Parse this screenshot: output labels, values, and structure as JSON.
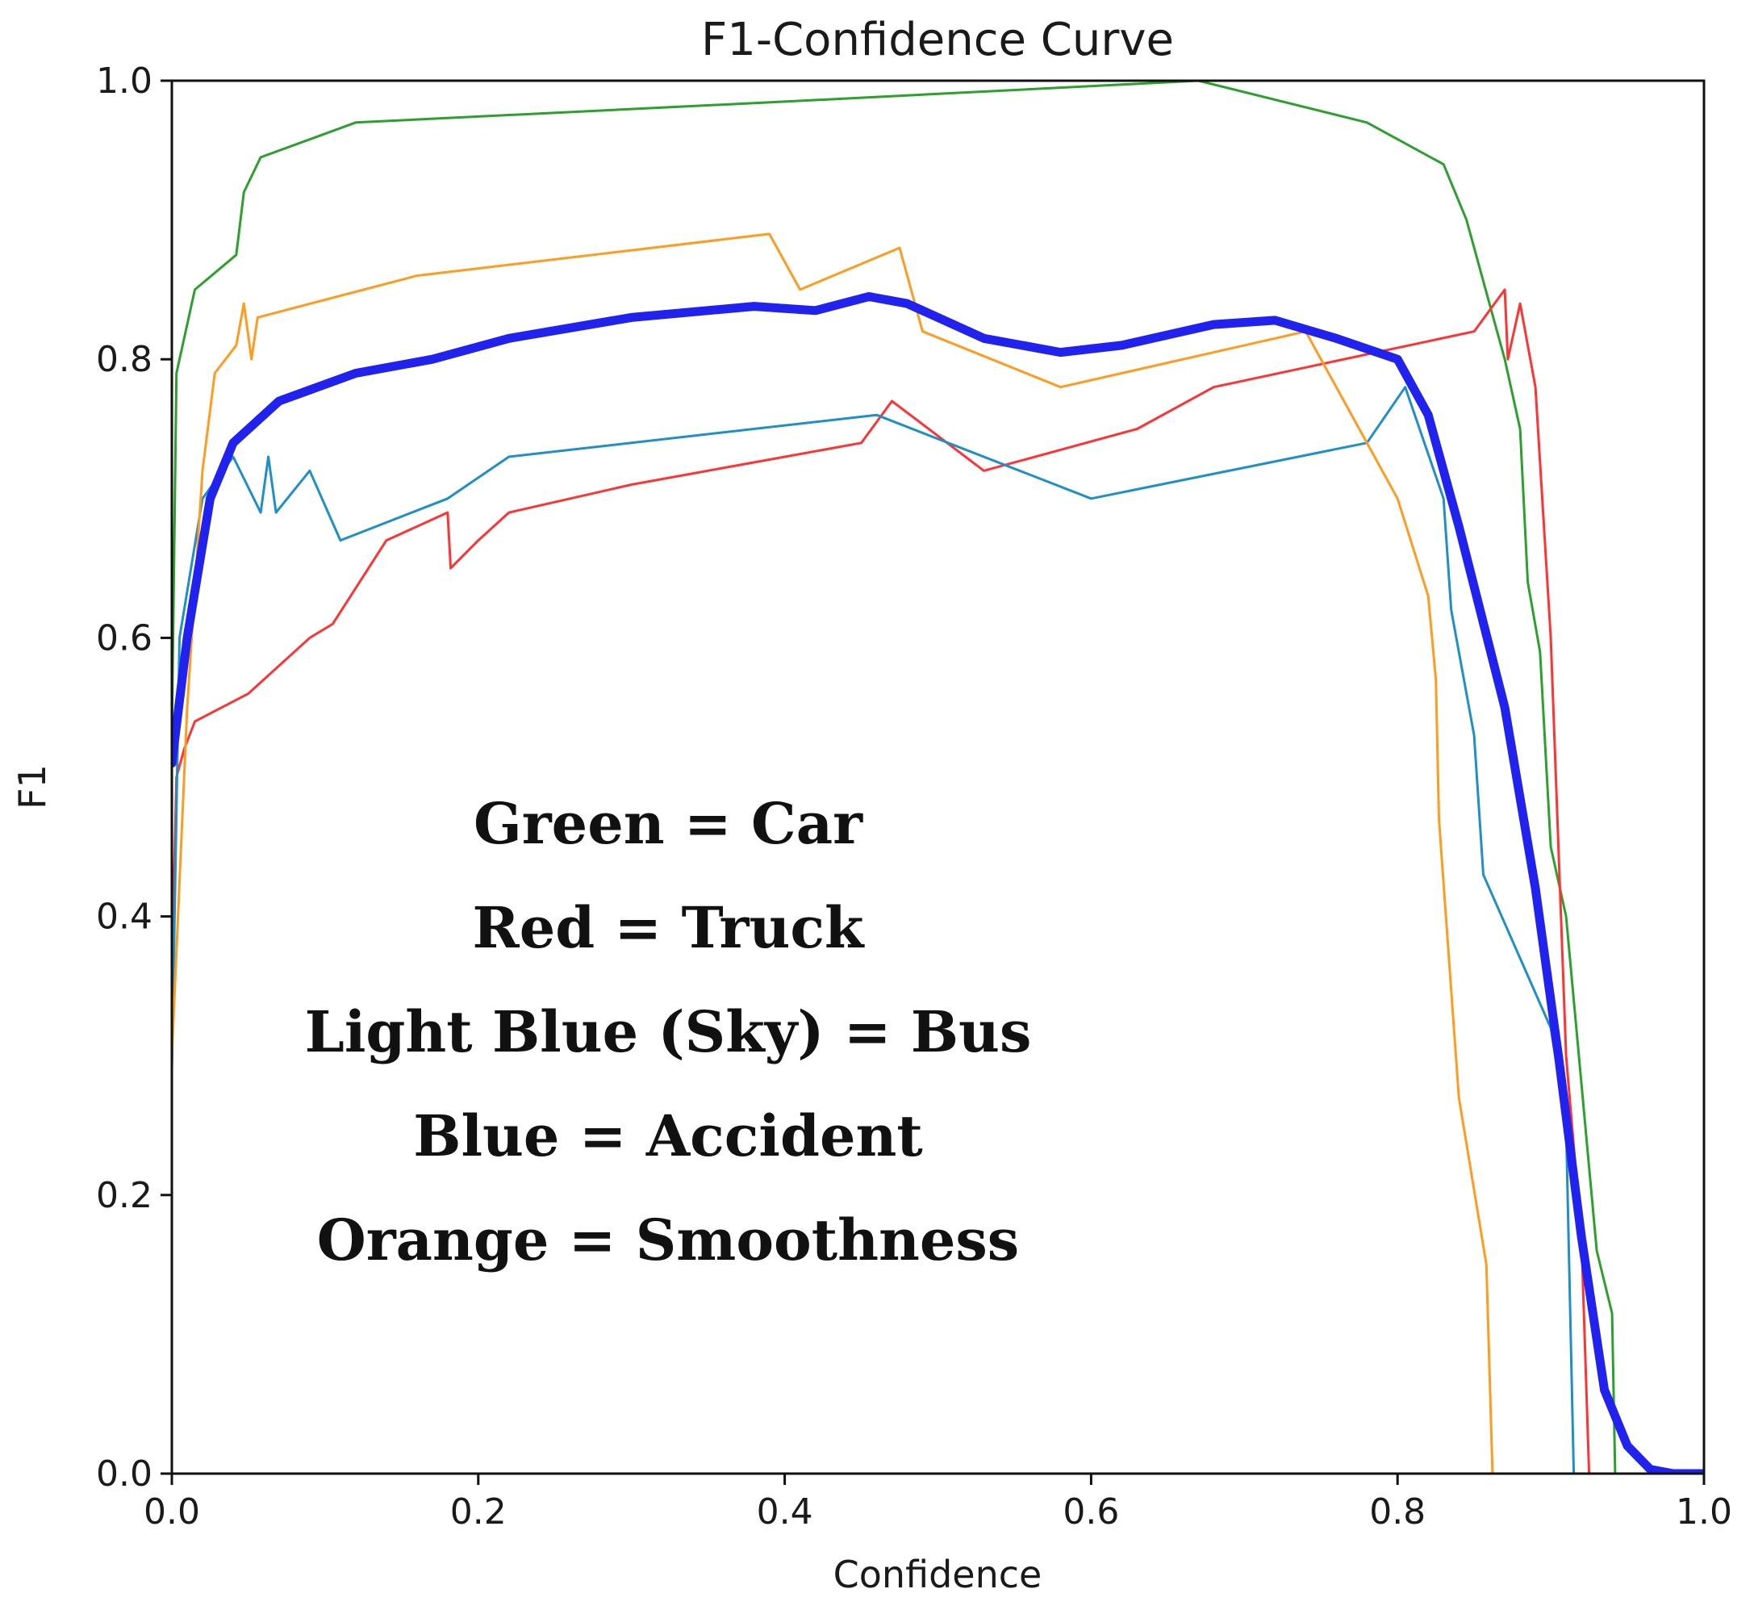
{
  "chart_data": {
    "type": "line",
    "title": "F1-Confidence Curve",
    "xlabel": "Confidence",
    "ylabel": "F1",
    "xlim": [
      0.0,
      1.0
    ],
    "ylim": [
      0.0,
      1.0
    ],
    "grid": false,
    "xticks": [
      "0.0",
      "0.2",
      "0.4",
      "0.6",
      "0.8",
      "1.0"
    ],
    "yticks": [
      "0.0",
      "0.2",
      "0.4",
      "0.6",
      "0.8",
      "1.0"
    ],
    "annotations": [
      "Green = Car",
      "Red = Truck",
      "Light Blue (Sky) = Bus",
      "Blue = Accident",
      "Orange = Smoothness"
    ],
    "series": [
      {
        "name": "Car",
        "color": "#2ca02c",
        "width": 3,
        "points": [
          [
            0.0,
            0.53
          ],
          [
            0.003,
            0.79
          ],
          [
            0.015,
            0.85
          ],
          [
            0.042,
            0.875
          ],
          [
            0.047,
            0.92
          ],
          [
            0.058,
            0.945
          ],
          [
            0.12,
            0.97
          ],
          [
            0.4,
            0.985
          ],
          [
            0.67,
            1.0
          ],
          [
            0.78,
            0.97
          ],
          [
            0.83,
            0.94
          ],
          [
            0.845,
            0.9
          ],
          [
            0.86,
            0.84
          ],
          [
            0.87,
            0.8
          ],
          [
            0.88,
            0.75
          ],
          [
            0.885,
            0.64
          ],
          [
            0.893,
            0.59
          ],
          [
            0.9,
            0.45
          ],
          [
            0.91,
            0.4
          ],
          [
            0.93,
            0.16
          ],
          [
            0.94,
            0.115
          ],
          [
            0.942,
            0.0
          ],
          [
            1.0,
            0.0
          ]
        ]
      },
      {
        "name": "Truck",
        "color": "#ff3333",
        "width": 3,
        "points": [
          [
            0.0,
            0.36
          ],
          [
            0.003,
            0.5
          ],
          [
            0.008,
            0.52
          ],
          [
            0.015,
            0.54
          ],
          [
            0.05,
            0.56
          ],
          [
            0.09,
            0.6
          ],
          [
            0.105,
            0.61
          ],
          [
            0.14,
            0.67
          ],
          [
            0.18,
            0.69
          ],
          [
            0.182,
            0.65
          ],
          [
            0.2,
            0.67
          ],
          [
            0.22,
            0.69
          ],
          [
            0.3,
            0.71
          ],
          [
            0.45,
            0.74
          ],
          [
            0.47,
            0.77
          ],
          [
            0.53,
            0.72
          ],
          [
            0.63,
            0.75
          ],
          [
            0.68,
            0.78
          ],
          [
            0.85,
            0.82
          ],
          [
            0.87,
            0.85
          ],
          [
            0.872,
            0.8
          ],
          [
            0.88,
            0.84
          ],
          [
            0.89,
            0.78
          ],
          [
            0.9,
            0.6
          ],
          [
            0.91,
            0.3
          ],
          [
            0.92,
            0.17
          ],
          [
            0.925,
            0.0
          ],
          [
            1.0,
            0.0
          ]
        ]
      },
      {
        "name": "Bus",
        "color": "#1f8fc8",
        "width": 3,
        "points": [
          [
            0.0,
            0.29
          ],
          [
            0.005,
            0.6
          ],
          [
            0.02,
            0.7
          ],
          [
            0.04,
            0.73
          ],
          [
            0.058,
            0.69
          ],
          [
            0.063,
            0.73
          ],
          [
            0.068,
            0.69
          ],
          [
            0.09,
            0.72
          ],
          [
            0.11,
            0.67
          ],
          [
            0.18,
            0.7
          ],
          [
            0.22,
            0.73
          ],
          [
            0.46,
            0.76
          ],
          [
            0.6,
            0.7
          ],
          [
            0.78,
            0.74
          ],
          [
            0.805,
            0.78
          ],
          [
            0.83,
            0.7
          ],
          [
            0.835,
            0.62
          ],
          [
            0.85,
            0.53
          ],
          [
            0.856,
            0.43
          ],
          [
            0.9,
            0.32
          ],
          [
            0.91,
            0.25
          ],
          [
            0.915,
            0.0
          ],
          [
            1.0,
            0.0
          ]
        ]
      },
      {
        "name": "Smoothness",
        "color": "#ff9b1f",
        "width": 3,
        "points": [
          [
            0.0,
            0.3
          ],
          [
            0.01,
            0.55
          ],
          [
            0.02,
            0.72
          ],
          [
            0.028,
            0.79
          ],
          [
            0.042,
            0.81
          ],
          [
            0.047,
            0.84
          ],
          [
            0.052,
            0.8
          ],
          [
            0.056,
            0.83
          ],
          [
            0.16,
            0.86
          ],
          [
            0.39,
            0.89
          ],
          [
            0.41,
            0.85
          ],
          [
            0.475,
            0.88
          ],
          [
            0.49,
            0.82
          ],
          [
            0.58,
            0.78
          ],
          [
            0.74,
            0.82
          ],
          [
            0.8,
            0.7
          ],
          [
            0.82,
            0.63
          ],
          [
            0.825,
            0.57
          ],
          [
            0.827,
            0.47
          ],
          [
            0.84,
            0.27
          ],
          [
            0.858,
            0.15
          ],
          [
            0.862,
            0.0
          ],
          [
            1.0,
            0.0
          ]
        ]
      },
      {
        "name": "Accident",
        "color": "#2222ee",
        "width": 11,
        "points": [
          [
            0.0,
            0.51
          ],
          [
            0.01,
            0.6
          ],
          [
            0.025,
            0.7
          ],
          [
            0.04,
            0.74
          ],
          [
            0.07,
            0.77
          ],
          [
            0.12,
            0.79
          ],
          [
            0.17,
            0.8
          ],
          [
            0.22,
            0.815
          ],
          [
            0.3,
            0.83
          ],
          [
            0.38,
            0.838
          ],
          [
            0.42,
            0.835
          ],
          [
            0.455,
            0.845
          ],
          [
            0.48,
            0.84
          ],
          [
            0.53,
            0.815
          ],
          [
            0.58,
            0.805
          ],
          [
            0.62,
            0.81
          ],
          [
            0.68,
            0.825
          ],
          [
            0.72,
            0.828
          ],
          [
            0.76,
            0.815
          ],
          [
            0.8,
            0.8
          ],
          [
            0.82,
            0.76
          ],
          [
            0.84,
            0.68
          ],
          [
            0.87,
            0.55
          ],
          [
            0.89,
            0.42
          ],
          [
            0.905,
            0.3
          ],
          [
            0.92,
            0.17
          ],
          [
            0.935,
            0.06
          ],
          [
            0.95,
            0.02
          ],
          [
            0.965,
            0.003
          ],
          [
            0.98,
            0.0
          ],
          [
            1.0,
            0.0
          ]
        ]
      }
    ]
  }
}
